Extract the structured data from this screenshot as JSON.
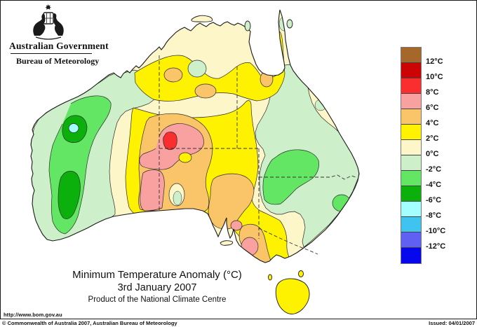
{
  "header": {
    "government": "Australian Government",
    "bureau": "Bureau of Meteorology",
    "emblem": "australian-coat-of-arms"
  },
  "legend": {
    "stops": [
      {
        "name": "above-12",
        "color": "#A5682A"
      },
      {
        "name": "10-12",
        "color": "#CC0404"
      },
      {
        "name": "8-10",
        "color": "#FA2E2E"
      },
      {
        "name": "6-8",
        "color": "#F9A0A0"
      },
      {
        "name": "4-6",
        "color": "#FAC468"
      },
      {
        "name": "2-4",
        "color": "#FFF200"
      },
      {
        "name": "0-2",
        "color": "#FCF6C9"
      },
      {
        "name": "-2-0",
        "color": "#CDEFC9"
      },
      {
        "name": "-4--2",
        "color": "#63E663"
      },
      {
        "name": "-6--4",
        "color": "#0CB00C"
      },
      {
        "name": "-8--6",
        "color": "#A4FFFF"
      },
      {
        "name": "-10--8",
        "color": "#3FC4F0"
      },
      {
        "name": "-12--10",
        "color": "#6060F2"
      },
      {
        "name": "below-12",
        "color": "#0707EE"
      }
    ],
    "labels": [
      "12°C",
      "10°C",
      "8°C",
      "6°C",
      "4°C",
      "2°C",
      "0°C",
      "-2°C",
      "-4°C",
      "-6°C",
      "-8°C",
      "-10°C",
      "-12°C"
    ]
  },
  "titles": {
    "main": "Minimum Temperature Anomaly (°C)",
    "date": "3rd January 2007",
    "product": "Product of the National Climate Centre"
  },
  "footer": {
    "url": "http://www.bom.gov.au",
    "copyright": "© Commonwealth of Australia 2007, Australian Bureau of Meteorology",
    "issued": "Issued: 04/01/2007"
  }
}
